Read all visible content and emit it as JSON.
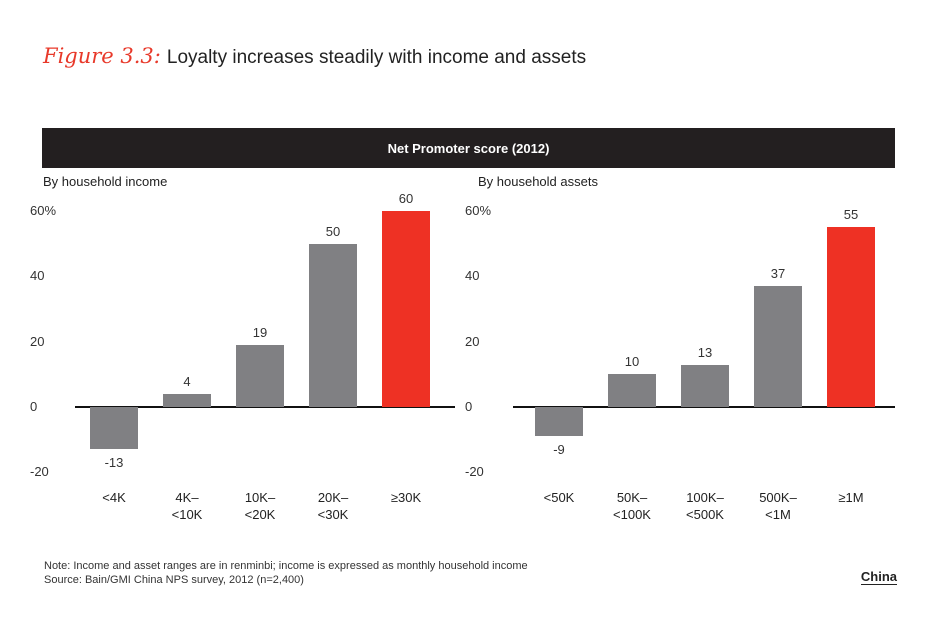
{
  "figure": {
    "label": "Figure 3.3:",
    "title": "Loyalty increases steadily with income and assets"
  },
  "banner_title": "Net Promoter score (2012)",
  "colors": {
    "gray": "#808083",
    "highlight": "#ee3124",
    "banner": "#231f20"
  },
  "chart_data": [
    {
      "type": "bar",
      "subtitle": "By household income",
      "categories": [
        "<4K",
        "4K–\n<10K",
        "10K–\n<20K",
        "20K–\n<30K",
        "≥30K"
      ],
      "values": [
        -13,
        4,
        19,
        50,
        60
      ],
      "highlight_index": 4,
      "ylim": [
        -20,
        60
      ],
      "yticks": [
        "60%",
        "40",
        "20",
        "0",
        "-20"
      ],
      "ytick_values": [
        60,
        40,
        20,
        0,
        -20
      ]
    },
    {
      "type": "bar",
      "subtitle": "By household assets",
      "categories": [
        "<50K",
        "50K–\n<100K",
        "100K–\n<500K",
        "500K–\n<1M",
        "≥1M"
      ],
      "values": [
        -9,
        10,
        13,
        37,
        55
      ],
      "highlight_index": 4,
      "ylim": [
        -20,
        60
      ],
      "yticks": [
        "60%",
        "40",
        "20",
        "0",
        "-20"
      ],
      "ytick_values": [
        60,
        40,
        20,
        0,
        -20
      ]
    }
  ],
  "footnotes": {
    "note": "Note: Income and asset ranges are in renminbi; income is expressed as monthly household income",
    "source": "Source: Bain/GMI China NPS survey, 2012 (n=2,400)"
  },
  "badge": "China"
}
